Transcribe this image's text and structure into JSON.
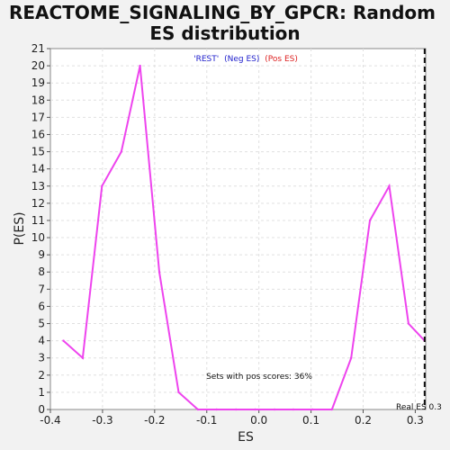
{
  "chart_data": {
    "type": "line",
    "title_line1": "REACTOME_SIGNALING_BY_GPCR: Random",
    "title_line2": "ES distribution",
    "xlabel": "ES",
    "ylabel": "P(ES)",
    "xlim": [
      -0.4,
      0.32
    ],
    "ylim": [
      0,
      21
    ],
    "x_ticks": [
      -0.4,
      -0.3,
      -0.2,
      -0.1,
      0.0,
      0.1,
      0.2,
      0.3
    ],
    "x_tick_labels": [
      "-0.4",
      "-0.3",
      "-0.2",
      "-0.1",
      "0.0",
      "0.1",
      "0.2",
      "0.3"
    ],
    "y_ticks": [
      0,
      1,
      2,
      3,
      4,
      5,
      6,
      7,
      8,
      9,
      10,
      11,
      12,
      13,
      14,
      15,
      16,
      17,
      18,
      19,
      20,
      21
    ],
    "y_tick_labels": [
      "0",
      "1",
      "2",
      "3",
      "4",
      "5",
      "6",
      "7",
      "8",
      "9",
      "10",
      "11",
      "12",
      "13",
      "14",
      "15",
      "16",
      "17",
      "18",
      "19",
      "20",
      "21"
    ],
    "grid": true,
    "legend": {
      "rest": "'REST'",
      "neg": "(Neg ES)",
      "pos": "(Pos ES)",
      "rest_color": "#2020cc",
      "neg_color": "#2020cc",
      "pos_color": "#dd2222"
    },
    "series": [
      {
        "color": "#ee44ee",
        "x": [
          -0.375,
          -0.338,
          -0.301,
          -0.264,
          -0.228,
          -0.191,
          -0.154,
          -0.117,
          -0.081,
          -0.044,
          -0.007,
          0.03,
          0.066,
          0.103,
          0.14,
          0.177,
          0.213,
          0.25,
          0.287,
          0.318
        ],
        "y": [
          4,
          3,
          13,
          15,
          20,
          8,
          1,
          0,
          0,
          0,
          0,
          0,
          0,
          0,
          0,
          3,
          11,
          13,
          5,
          4
        ]
      }
    ],
    "real_es": 0.318,
    "real_es_label": "Real ES 0.3",
    "annotation": "Sets with pos scores: 36%"
  }
}
